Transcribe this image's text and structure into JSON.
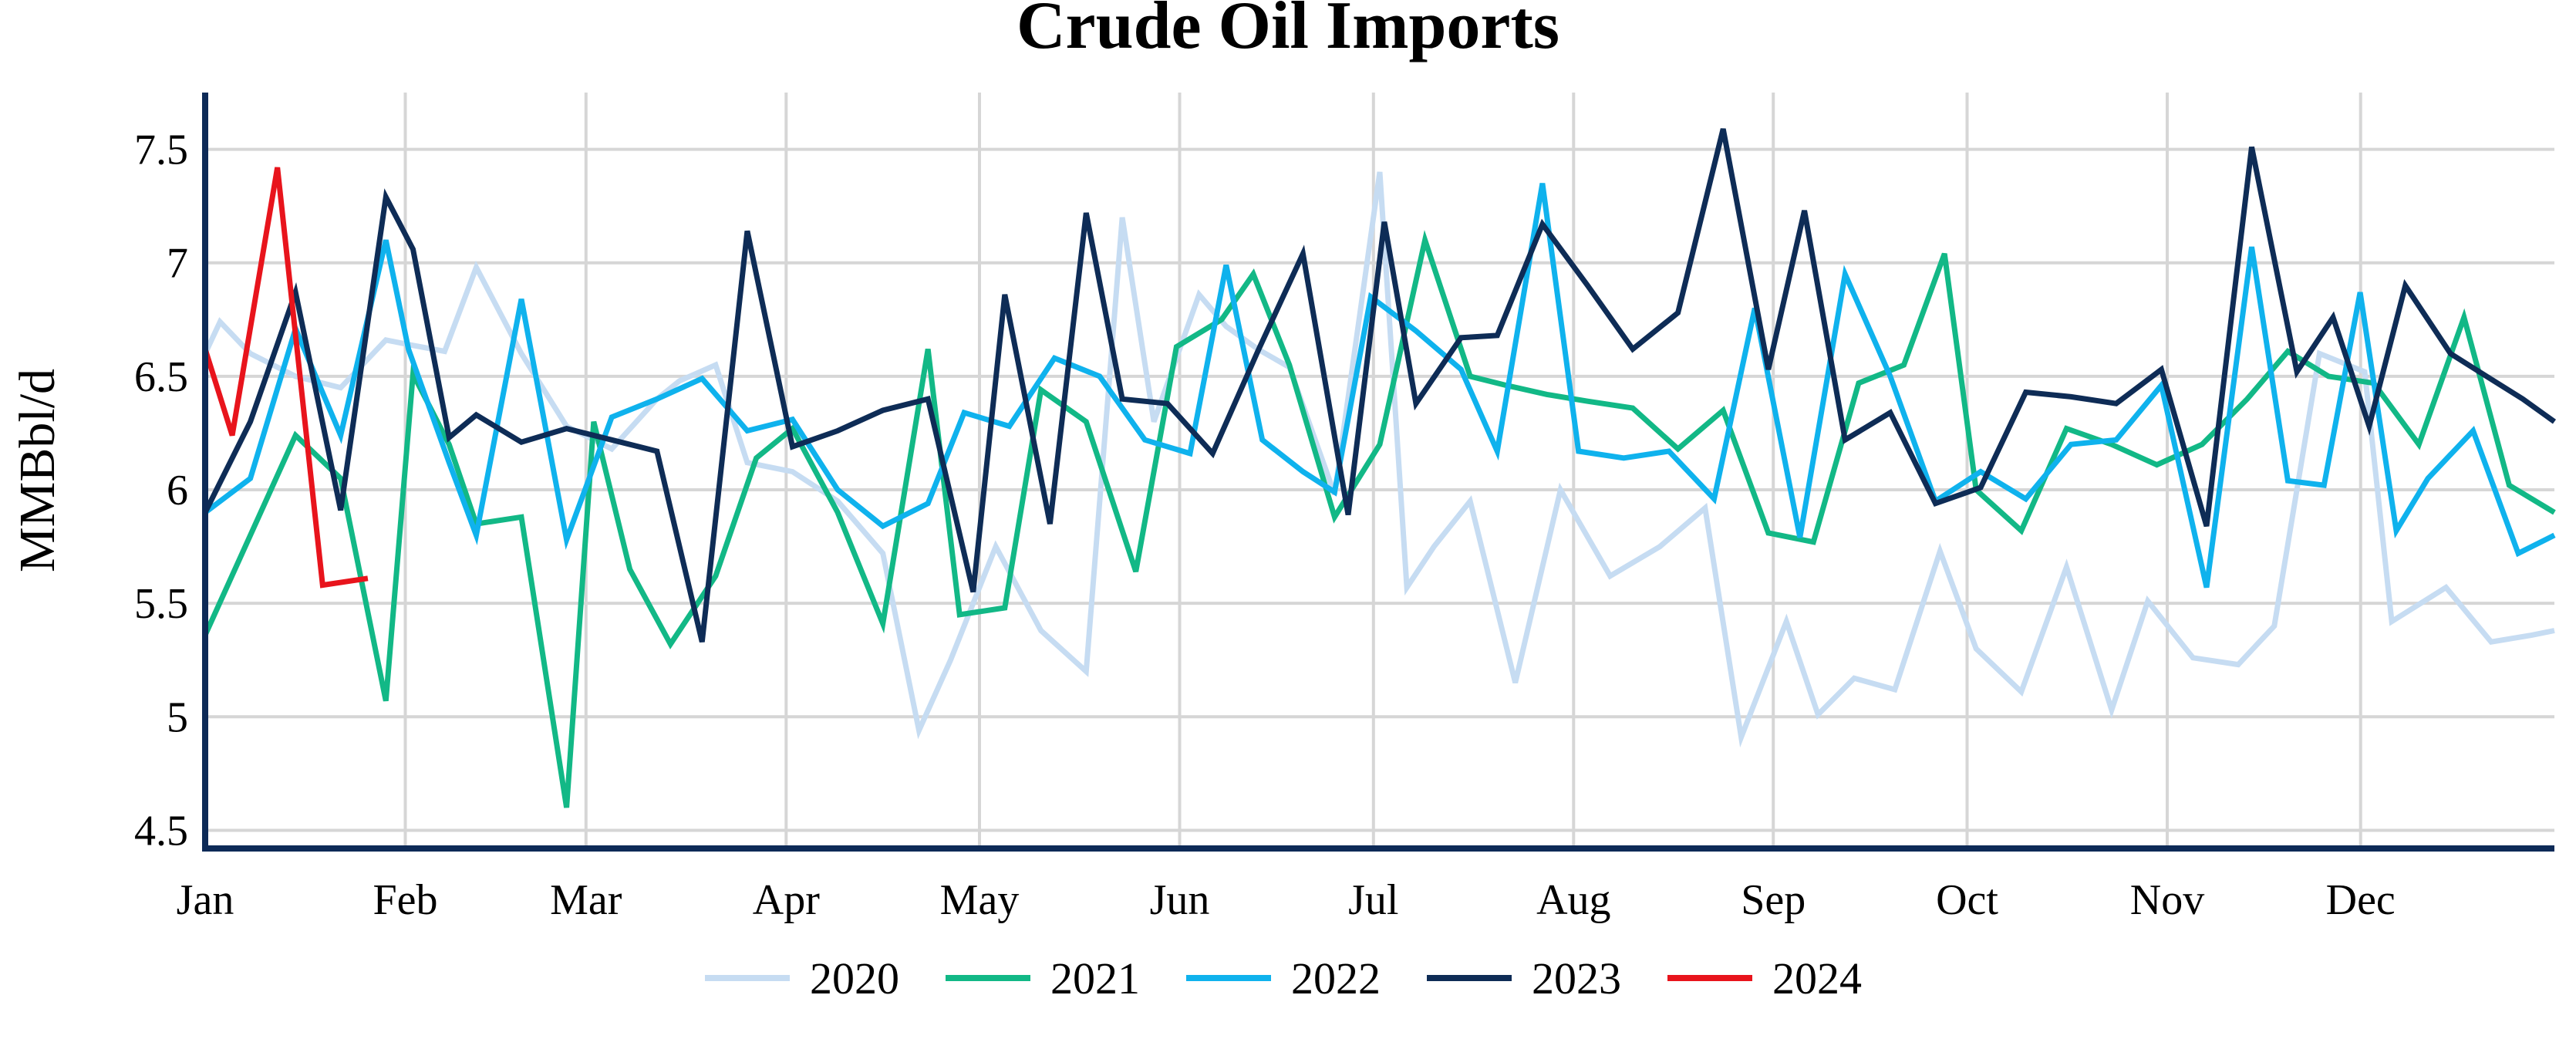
{
  "chart_data": {
    "type": "line",
    "title": "Crude Oil Imports",
    "ylabel": "MMBbl/d",
    "xlabel": "",
    "xlim": [
      0,
      52
    ],
    "ylim": [
      4.42,
      7.75
    ],
    "yticks": [
      4.5,
      5,
      5.5,
      6,
      6.5,
      7,
      7.5
    ],
    "ytick_labels": [
      "4.5",
      "5",
      "5.5",
      "6",
      "6.5",
      "7",
      "7.5"
    ],
    "xticks": [
      {
        "label": "Jan",
        "x": 0
      },
      {
        "label": "Feb",
        "x": 4.43
      },
      {
        "label": "Mar",
        "x": 8.43
      },
      {
        "label": "Apr",
        "x": 12.86
      },
      {
        "label": "May",
        "x": 17.14
      },
      {
        "label": "Jun",
        "x": 21.57
      },
      {
        "label": "Jul",
        "x": 25.86
      },
      {
        "label": "Aug",
        "x": 30.29
      },
      {
        "label": "Sep",
        "x": 34.71
      },
      {
        "label": "Oct",
        "x": 39.0
      },
      {
        "label": "Nov",
        "x": 43.43
      },
      {
        "label": "Dec",
        "x": 47.71
      }
    ],
    "grid": true,
    "legend_position": "bottom",
    "series": [
      {
        "name": "2020",
        "color": "#c6dcf2",
        "x": [
          0,
          0.33,
          1,
          2,
          3,
          4,
          4.5,
          5.3,
          6,
          7,
          8,
          9,
          10,
          10.5,
          11.3,
          12,
          13,
          14,
          15,
          15.8,
          16.5,
          17.5,
          18.5,
          19.5,
          20.3,
          21,
          22,
          22.6,
          23.3,
          24,
          25,
          26,
          26.6,
          27.2,
          28,
          29,
          30,
          31.1,
          32.2,
          33.2,
          34,
          35,
          35.7,
          36.5,
          37.4,
          38.4,
          39.2,
          40.2,
          41.2,
          42.2,
          43,
          44,
          45,
          45.8,
          46.8,
          47.8,
          48.4,
          49.6,
          50.6,
          51.5,
          52
        ],
        "y": [
          6.6,
          6.74,
          6.6,
          6.5,
          6.45,
          6.66,
          6.64,
          6.61,
          6.98,
          6.6,
          6.28,
          6.18,
          6.4,
          6.48,
          6.55,
          6.12,
          6.08,
          5.95,
          5.72,
          4.94,
          5.25,
          5.75,
          5.38,
          5.2,
          7.2,
          6.3,
          6.86,
          6.72,
          6.62,
          6.54,
          5.98,
          7.4,
          5.57,
          5.75,
          5.95,
          5.15,
          6.0,
          5.62,
          5.75,
          5.92,
          4.91,
          5.42,
          5.01,
          5.17,
          5.12,
          5.73,
          5.3,
          5.11,
          5.66,
          5.03,
          5.51,
          5.26,
          5.23,
          5.4,
          6.6,
          6.52,
          5.42,
          5.57,
          5.33,
          5.36,
          5.38
        ]
      },
      {
        "name": "2021",
        "color": "#12b886",
        "x": [
          0,
          1,
          2,
          3,
          4,
          4.6,
          5.4,
          6,
          7,
          8,
          8.6,
          9.4,
          10.3,
          11.3,
          12.2,
          13,
          14,
          15,
          16,
          16.7,
          17.7,
          18.5,
          19.5,
          20.6,
          21.5,
          22.5,
          23.2,
          24,
          25,
          26,
          27,
          28,
          28.8,
          29.7,
          30.6,
          31.6,
          32.6,
          33.6,
          34.6,
          35.6,
          36.6,
          37.6,
          38.5,
          39.2,
          40.2,
          41.2,
          42.2,
          43.2,
          44.2,
          45.2,
          46.1,
          47,
          48,
          49,
          50,
          51,
          52
        ],
        "y": [
          5.36,
          5.8,
          6.24,
          6.05,
          5.07,
          6.51,
          6.2,
          5.85,
          5.88,
          4.6,
          6.3,
          5.65,
          5.32,
          5.62,
          6.14,
          6.27,
          5.9,
          5.41,
          6.62,
          5.45,
          5.48,
          6.44,
          6.3,
          5.64,
          6.63,
          6.75,
          6.95,
          6.55,
          5.88,
          6.2,
          7.1,
          6.5,
          6.46,
          6.42,
          6.39,
          6.36,
          6.18,
          6.35,
          5.81,
          5.77,
          6.47,
          6.55,
          7.04,
          6.0,
          5.82,
          6.27,
          6.2,
          6.11,
          6.2,
          6.4,
          6.61,
          6.5,
          6.47,
          6.2,
          6.76,
          6.02,
          5.9
        ]
      },
      {
        "name": "2022",
        "color": "#0fb2ed",
        "x": [
          0,
          1,
          2,
          3,
          4,
          4.5,
          5.4,
          6,
          7,
          8,
          9,
          10,
          11,
          12,
          13,
          14,
          15,
          16,
          16.8,
          17.8,
          18.8,
          19.8,
          20.8,
          21.8,
          22.6,
          23.4,
          24.3,
          25,
          25.8,
          26.8,
          27.8,
          28.6,
          29.6,
          30.4,
          31.4,
          32.4,
          33.4,
          34.3,
          35.3,
          36.3,
          37.3,
          38.3,
          39.3,
          40.3,
          41.3,
          42.3,
          43.3,
          44.3,
          45.3,
          46.1,
          46.9,
          47.7,
          48.5,
          49.2,
          50.2,
          51.2,
          52
        ],
        "y": [
          5.9,
          6.05,
          6.71,
          6.24,
          7.1,
          6.62,
          6.12,
          5.8,
          6.84,
          5.78,
          6.32,
          6.4,
          6.49,
          6.26,
          6.31,
          6.0,
          5.84,
          5.94,
          6.34,
          6.28,
          6.58,
          6.5,
          6.22,
          6.16,
          6.99,
          6.22,
          6.08,
          5.99,
          6.85,
          6.7,
          6.53,
          6.17,
          7.35,
          6.17,
          6.14,
          6.17,
          5.96,
          6.8,
          5.79,
          6.95,
          6.5,
          5.95,
          6.08,
          5.96,
          6.2,
          6.22,
          6.46,
          5.57,
          7.07,
          6.04,
          6.02,
          6.87,
          5.82,
          6.05,
          6.26,
          5.72,
          5.8
        ]
      },
      {
        "name": "2023",
        "color": "#0e2c56",
        "x": [
          0,
          1,
          2,
          3,
          4,
          4.6,
          5.4,
          6,
          7,
          8,
          9,
          10,
          11,
          12,
          13,
          14,
          15,
          16,
          17,
          17.7,
          18.7,
          19.5,
          20.3,
          21.3,
          22.3,
          23.3,
          24.3,
          25.3,
          26.1,
          26.8,
          27.8,
          28.6,
          29.6,
          30.6,
          31.6,
          32.6,
          33.6,
          34.6,
          35.4,
          36.3,
          37.3,
          38.3,
          39.3,
          40.3,
          41.3,
          42.3,
          43.3,
          44.3,
          45.3,
          46.3,
          47.1,
          47.9,
          48.7,
          49.7,
          50.5,
          51.3,
          52
        ],
        "y": [
          5.9,
          6.3,
          6.87,
          5.91,
          7.29,
          7.06,
          6.23,
          6.33,
          6.21,
          6.27,
          6.22,
          6.17,
          5.33,
          7.14,
          6.19,
          6.26,
          6.35,
          6.4,
          5.55,
          6.86,
          5.85,
          7.22,
          6.4,
          6.38,
          6.16,
          6.61,
          7.04,
          5.89,
          7.18,
          6.38,
          6.67,
          6.68,
          7.17,
          6.9,
          6.62,
          6.78,
          7.59,
          6.53,
          7.23,
          6.22,
          6.34,
          5.94,
          6.01,
          6.43,
          6.41,
          6.38,
          6.53,
          5.84,
          7.51,
          6.52,
          6.76,
          6.28,
          6.9,
          6.6,
          6.5,
          6.4,
          6.3
        ]
      },
      {
        "name": "2024",
        "color": "#e8141c",
        "x": [
          0,
          0.6,
          1.6,
          2.6,
          3.6
        ],
        "y": [
          6.62,
          6.24,
          7.42,
          5.58,
          5.61
        ]
      }
    ]
  }
}
